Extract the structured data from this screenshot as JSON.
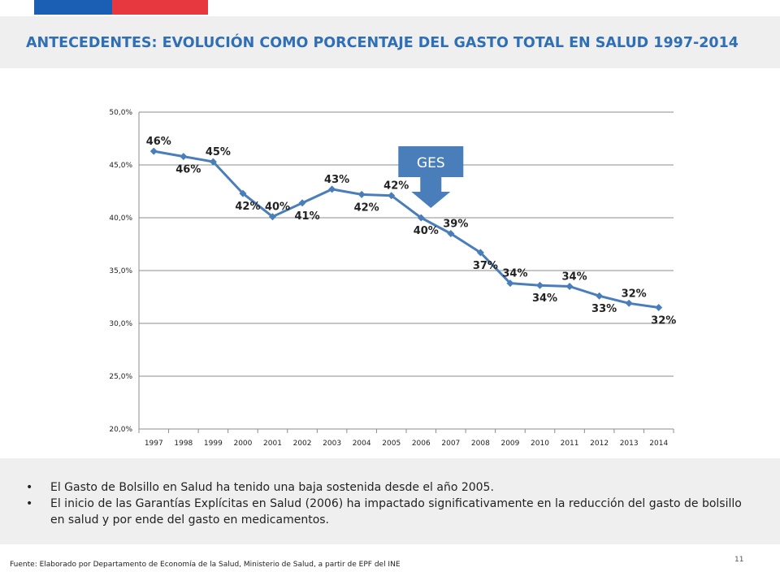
{
  "slide": {
    "title": "ANTECEDENTES: EVOLUCIÓN COMO PORCENTAJE DEL GASTO TOTAL EN SALUD 1997-2014",
    "bullets": [
      "El Gasto de Bolsillo en Salud ha tenido una baja sostenida desde el año 2005.",
      "El inicio de las Garantías Explícitas en Salud (2006) ha impactado significativamente en la reducción del gasto de bolsillo en salud y por ende del gasto en medicamentos."
    ],
    "source": "Fuente: Elaborado por Departamento de Economía de la Salud, Ministerio de Salud, a partir de EPF del INE",
    "page_number": "11"
  },
  "colors": {
    "title": "#2f6fb6",
    "line": "#4a7ebb",
    "flag_blue": "#1a5fb4",
    "flag_red": "#e8383f",
    "annotation": "#4a7ebb"
  },
  "chart_data": {
    "type": "line",
    "title": "",
    "xlabel": "",
    "ylabel": "",
    "categories": [
      "1997",
      "1998",
      "1999",
      "2000",
      "2001",
      "2002",
      "2003",
      "2004",
      "2005",
      "2006",
      "2007",
      "2008",
      "2009",
      "2010",
      "2011",
      "2012",
      "2013",
      "2014"
    ],
    "series": [
      {
        "values": [
          46.3,
          45.8,
          45.3,
          42.3,
          40.1,
          41.4,
          42.7,
          42.2,
          42.1,
          40.0,
          38.5,
          36.7,
          33.8,
          33.6,
          33.5,
          32.6,
          31.9,
          31.5
        ],
        "labels": [
          "46%",
          "46%",
          "45%",
          "42%",
          "40%",
          "41%",
          "43%",
          "42%",
          "42%",
          "40%",
          "39%",
          "37%",
          "34%",
          "34%",
          "34%",
          "33%",
          "32%",
          "32%"
        ]
      }
    ],
    "ylim": [
      20,
      50
    ],
    "yticks": [
      20,
      25,
      30,
      35,
      40,
      45,
      50
    ],
    "ytick_labels": [
      "20,0%",
      "25,0%",
      "30,0%",
      "35,0%",
      "40,0%",
      "45,0%",
      "50,0%"
    ],
    "grid": true,
    "legend": "none",
    "annotation": {
      "text": "GES",
      "at_category": "2006"
    }
  }
}
